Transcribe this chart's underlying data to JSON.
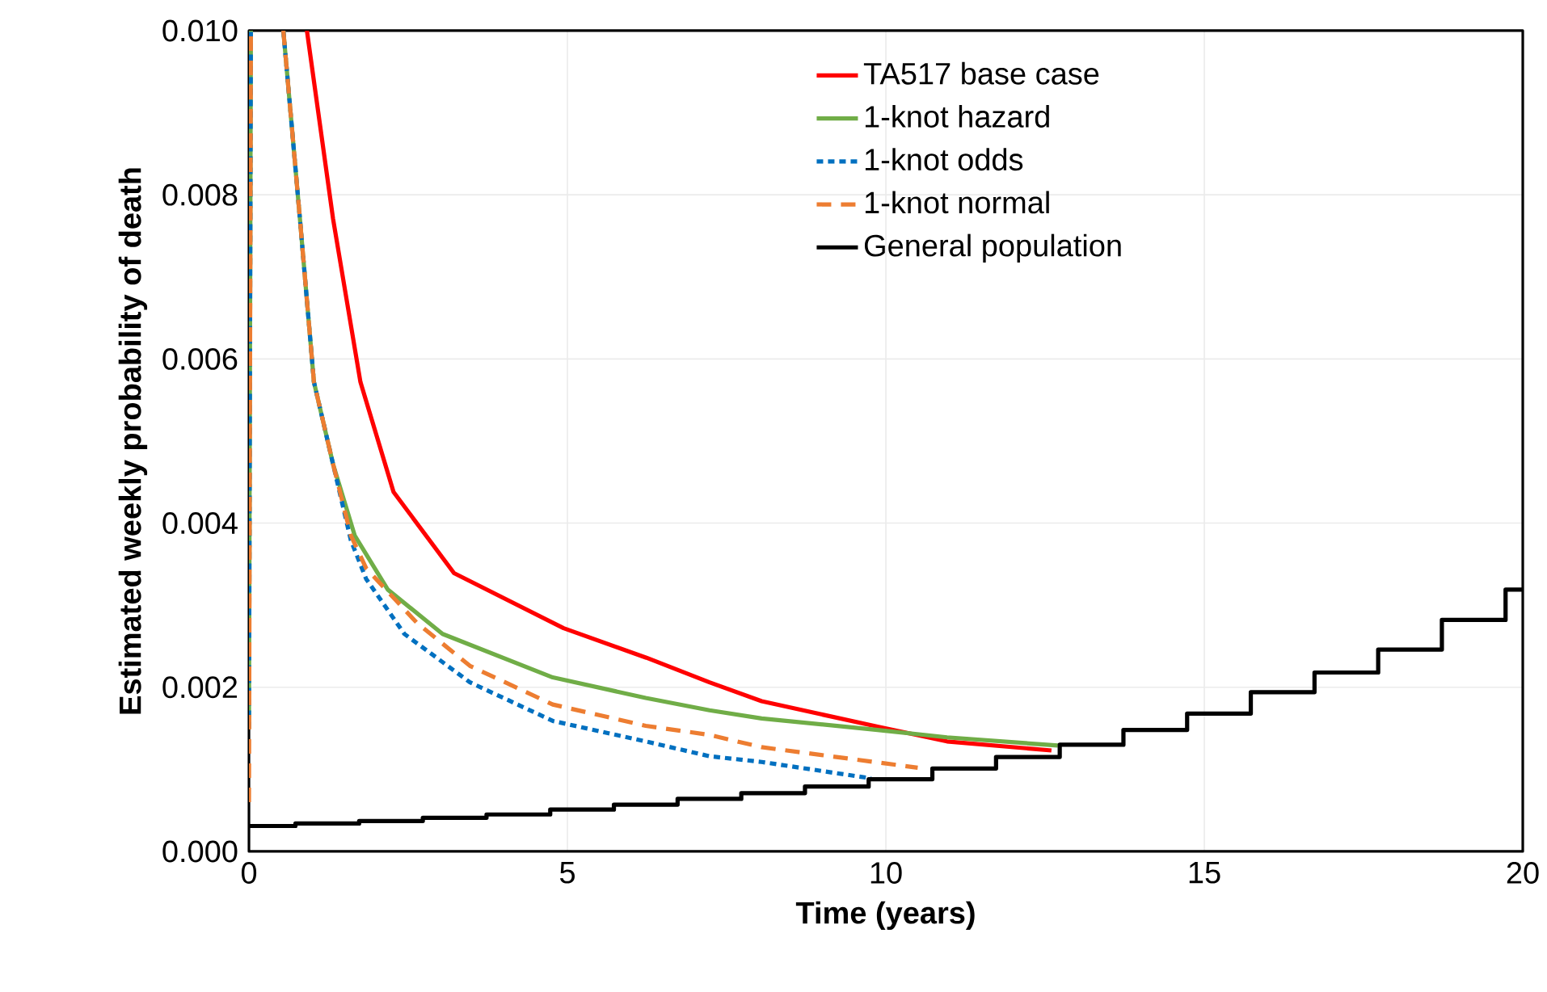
{
  "chart_data": {
    "type": "line",
    "xlabel": "Time (years)",
    "ylabel": "Estimated weekly probability of death",
    "xlim": [
      0,
      20
    ],
    "xticks": [
      0,
      5,
      10,
      15,
      20
    ],
    "ylim": [
      0,
      0.01
    ],
    "yticks": [
      {
        "value": 0,
        "label": "0.000"
      },
      {
        "value": 0.002,
        "label": "0.002"
      },
      {
        "value": 0.004,
        "label": "0.004"
      },
      {
        "value": 0.006,
        "label": "0.006"
      },
      {
        "value": 0.008,
        "label": "0.008"
      },
      {
        "value": 0.01,
        "label": "0.010"
      }
    ],
    "grid": true,
    "legend": "top right",
    "marker": "none",
    "series": [
      {
        "name": "TA517 base case",
        "color": "#ff0000",
        "line_style": "solid",
        "x": [
          0.91,
          1.32,
          1.75,
          2.27,
          3.22,
          4.94,
          6.24,
          7.23,
          8.05,
          9.87,
          10.96,
          12.6
        ],
        "values": [
          0.01,
          0.00771,
          0.00572,
          0.00438,
          0.00339,
          0.00272,
          0.00236,
          0.00206,
          0.00183,
          0.00152,
          0.00134,
          0.00123
        ]
      },
      {
        "name": "1-knot hazard",
        "color": "#70ad47",
        "line_style": "solid",
        "x": [
          0,
          0.03,
          0.3,
          0.54,
          0.8,
          1.02,
          1.32,
          1.66,
          2.18,
          3.04,
          4.77,
          6.23,
          7.23,
          8.05,
          9.87,
          10.96,
          12.7
        ],
        "values": [
          0.0015,
          0.01,
          null,
          0.01,
          0.00771,
          0.00572,
          0.00472,
          0.00385,
          0.00319,
          0.00265,
          0.00212,
          0.00187,
          0.00172,
          0.00162,
          0.00148,
          0.00139,
          0.00129
        ]
      },
      {
        "name": "1-knot odds",
        "color": "#0070c0",
        "line_style": "dashed",
        "x": [
          0,
          0.03,
          0.3,
          0.54,
          0.8,
          1.02,
          1.32,
          1.6,
          1.84,
          2.44,
          3.47,
          4.77,
          6.23,
          7.23,
          8.05,
          9.77
        ],
        "values": [
          0.0015,
          0.01,
          null,
          0.01,
          0.00771,
          0.00572,
          0.00472,
          0.00379,
          0.00332,
          0.00265,
          0.00206,
          0.00159,
          0.00134,
          0.00116,
          0.00109,
          0.00089
        ]
      },
      {
        "name": "1-knot normal",
        "color": "#ed7d31",
        "line_style": "longdashed",
        "x": [
          0,
          0.03,
          0.3,
          0.54,
          0.8,
          1.02,
          1.32,
          1.6,
          1.84,
          2.63,
          3.47,
          4.77,
          6.23,
          7.23,
          8.05,
          10.5
        ],
        "values": [
          0.0006,
          0.01,
          null,
          0.01,
          0.00771,
          0.00572,
          0.00472,
          0.00385,
          0.00345,
          0.00279,
          0.00226,
          0.00179,
          0.00153,
          0.00142,
          0.00127,
          0.00102
        ]
      },
      {
        "name": "General population",
        "color": "#000000",
        "type": "step",
        "line_style": "solid",
        "x": [
          0,
          0.73,
          1.73,
          2.73,
          3.73,
          4.73,
          5.73,
          6.73,
          7.73,
          8.73,
          9.73,
          10.73,
          11.73,
          12.73,
          13.73,
          14.73,
          15.73,
          16.73,
          17.73,
          18.73,
          19.73,
          20
        ],
        "values": [
          0.00031,
          0.00034,
          0.00037,
          0.00041,
          0.00045,
          0.00051,
          0.00057,
          0.00064,
          0.00071,
          0.00079,
          0.00088,
          0.00101,
          0.00115,
          0.0013,
          0.00148,
          0.00168,
          0.00194,
          0.00218,
          0.00246,
          0.00282,
          0.00319,
          0.00319
        ]
      }
    ]
  }
}
